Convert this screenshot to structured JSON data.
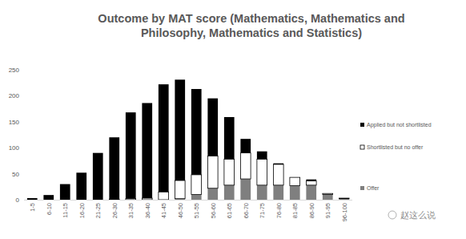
{
  "chart_data": {
    "type": "bar",
    "stacked": true,
    "grid": false,
    "legend": "right",
    "title": "Outcome by MAT score (Mathematics, Mathematics and Philosophy, Mathematics and Statistics)",
    "categories": [
      "1-5",
      "6-10",
      "11-15",
      "16-20",
      "21-25",
      "26-30",
      "31-35",
      "36-40",
      "41-45",
      "46-50",
      "51-55",
      "56-60",
      "61-65",
      "66-70",
      "71-75",
      "76-80",
      "81-85",
      "86-90",
      "91-95",
      "96-100"
    ],
    "series": [
      {
        "name": "Offer",
        "color": "#7f7f7f",
        "values": [
          0,
          0,
          0,
          0,
          0,
          0,
          0,
          0,
          0,
          2,
          10,
          22,
          28,
          40,
          28,
          28,
          27,
          28,
          10,
          2
        ]
      },
      {
        "name": "Shortlisted but no offer",
        "color": "#ffffff",
        "values": [
          0,
          0,
          0,
          0,
          0,
          1,
          2,
          3,
          15,
          35,
          38,
          62,
          50,
          50,
          50,
          40,
          16,
          8,
          2,
          1
        ]
      },
      {
        "name": "Applied but not shortlisted",
        "color": "#000000",
        "values": [
          3,
          9,
          30,
          52,
          90,
          119,
          166,
          183,
          207,
          194,
          165,
          111,
          81,
          27,
          15,
          2,
          0,
          3,
          0,
          0
        ]
      }
    ],
    "ylim": [
      0,
      250
    ],
    "yticks": [
      0,
      50,
      100,
      150,
      200,
      250
    ],
    "watermark": "赵这么说"
  }
}
